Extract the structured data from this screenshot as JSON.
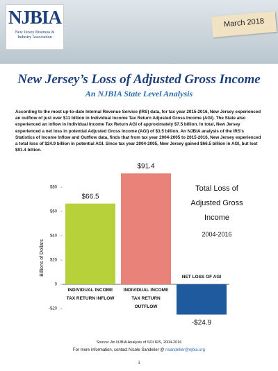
{
  "header": {
    "logo": "NJBIA",
    "logo_subtitle": "New Jersey Business & Industry Association",
    "date": "March 2018"
  },
  "title": "New Jersey’s Loss of Adjusted Gross Income",
  "subtitle": "An NJBIA State Level Analysis",
  "body": "According to the most up-to-date Internal Revenue Service (IRS) data, for tax year 2015-2016, New Jersey experienced an outflow of just over $11 billion in Individual Income Tax Return Adjusted Gross Income (AGI). The State also experienced an inflow in Individual Income Tax Return AGI of approximately $7.5 billion.  In total, New Jersey experienced a net loss in potential Adjusted Gross Income (AGI) of $3.5 billion. An NJBIA analysis of the IRS's Statistics of Income Inflow and Outflow data, finds that from tax year 2004-2005 to 2015-2016, New Jersey experienced a total loss of $24.9 billion in potential AGI. Since tax year 2004-2005, New Jersey gained $66.5 billion in AGI, but lost $91.4 billion.",
  "chart_data": {
    "type": "bar",
    "title": "Total Loss of Adjusted Gross Income",
    "subtitle": "2004-2016",
    "y_label": "Billions of Dollars",
    "categories": [
      "INDIVIDUAL INCOME TAX RETURN INFLOW",
      "INDIVIDUAL INCOME TAX RETURN OUTFLOW",
      "NET LOSS OF AGI"
    ],
    "values": [
      66.5,
      91.4,
      -24.9
    ],
    "value_labels": [
      "$66.5",
      "$91.4",
      "-$24.9"
    ],
    "colors": [
      "#b7d13a",
      "#e9837a",
      "#1f5a9e"
    ],
    "ylim": [
      -30,
      100
    ],
    "yticks": [
      {
        "value": -20,
        "label": "-$20"
      },
      0,
      {
        "value": 20,
        "label": "$20"
      },
      {
        "value": 40,
        "label": "$40"
      },
      {
        "value": 60,
        "label": "$60"
      },
      {
        "value": 80,
        "label": "$80"
      }
    ],
    "grid": false
  },
  "footer": {
    "source": "Source: An NJBIA Analysis of SOI IRS, 2004-2016",
    "contact": "For more information, contact Nicole Sandelier @",
    "email": "nsandelier@njbia.org",
    "page": "1"
  }
}
